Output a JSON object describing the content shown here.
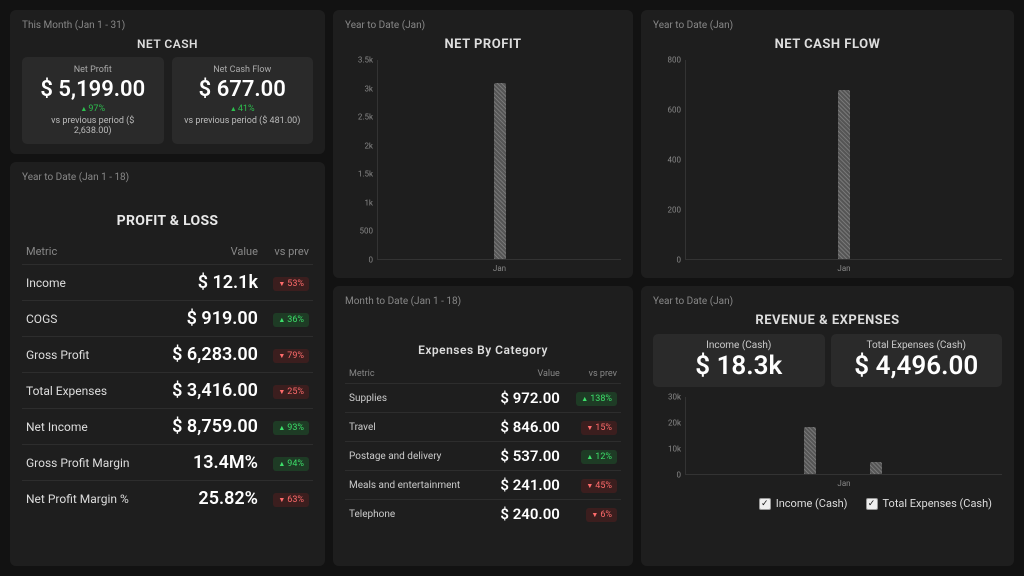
{
  "colors": {
    "bg": "#121212",
    "panel": "#1e1e1e",
    "card": "#2a2a2a",
    "bar_fill": "#5a5a5a",
    "bar_stripe_a": "#777777",
    "bar_stripe_b": "#555555",
    "grid": "#333333",
    "text": "#e8e8e8",
    "muted": "#888888",
    "up": "#3ddf6a",
    "up_bg": "#1e3b25",
    "down": "#ff6b6b",
    "down_bg": "#3b1e1e"
  },
  "net_cash": {
    "period": "This Month (Jan 1 - 31)",
    "title": "NET CASH",
    "kpis": [
      {
        "label": "Net Profit",
        "value": "$ 5,199.00",
        "delta_dir": "up",
        "delta_pct": "97%",
        "sub": "vs previous period ($ 2,638.00)"
      },
      {
        "label": "Net Cash Flow",
        "value": "$ 677.00",
        "delta_dir": "up",
        "delta_pct": "41%",
        "sub": "vs previous period ($ 481.00)"
      }
    ]
  },
  "profit_loss": {
    "period": "Year to Date (Jan 1 - 18)",
    "title": "PROFIT & LOSS",
    "headers": [
      "Metric",
      "Value",
      "vs prev"
    ],
    "rows": [
      {
        "metric": "Income",
        "value": "$ 12.1k",
        "dir": "down",
        "pct": "53%"
      },
      {
        "metric": "COGS",
        "value": "$ 919.00",
        "dir": "up",
        "pct": "36%"
      },
      {
        "metric": "Gross Profit",
        "value": "$ 6,283.00",
        "dir": "down",
        "pct": "79%"
      },
      {
        "metric": "Total Expenses",
        "value": "$ 3,416.00",
        "dir": "down",
        "pct": "25%"
      },
      {
        "metric": "Net Income",
        "value": "$ 8,759.00",
        "dir": "up",
        "pct": "93%"
      },
      {
        "metric": "Gross Profit Margin",
        "value": "13.4M%",
        "dir": "up",
        "pct": "94%"
      },
      {
        "metric": "Net Profit Margin %",
        "value": "25.82%",
        "dir": "down",
        "pct": "63%"
      }
    ]
  },
  "net_profit_chart": {
    "period": "Year to Date (Jan)",
    "title": "NET PROFIT",
    "type": "bar",
    "ylim": [
      0,
      3500
    ],
    "ytick_step": 500,
    "ylabels": [
      "3.5k",
      "3k",
      "2.5k",
      "2k",
      "1.5k",
      "1k",
      "500",
      "0"
    ],
    "categories": [
      "Jan"
    ],
    "values": [
      3100
    ]
  },
  "net_cash_flow_chart": {
    "period": "Year to Date (Jan)",
    "title": "NET CASH FLOW",
    "type": "bar",
    "ylim": [
      0,
      800
    ],
    "ytick_step": 200,
    "ylabels": [
      "800",
      "600",
      "400",
      "200",
      "0"
    ],
    "categories": [
      "Jan"
    ],
    "values": [
      680
    ]
  },
  "expenses": {
    "period": "Month to Date (Jan 1 - 18)",
    "title": "Expenses By Category",
    "headers": [
      "Metric",
      "Value",
      "vs prev"
    ],
    "rows": [
      {
        "metric": "Supplies",
        "value": "$ 972.00",
        "dir": "up",
        "pct": "138%"
      },
      {
        "metric": "Travel",
        "value": "$ 846.00",
        "dir": "down",
        "pct": "15%"
      },
      {
        "metric": "Postage and delivery",
        "value": "$ 537.00",
        "dir": "up",
        "pct": "12%"
      },
      {
        "metric": "Meals and entertainment",
        "value": "$ 241.00",
        "dir": "down",
        "pct": "45%"
      },
      {
        "metric": "Telephone",
        "value": "$ 240.00",
        "dir": "down",
        "pct": "6%"
      }
    ]
  },
  "rev_exp": {
    "period": "Year to Date (Jan)",
    "title": "REVENUE & EXPENSES",
    "kpis": [
      {
        "label": "Income (Cash)",
        "value": "$ 18.3k"
      },
      {
        "label": "Total Expenses (Cash)",
        "value": "$ 4,496.00"
      }
    ],
    "chart": {
      "type": "grouped-bar",
      "ylim": [
        0,
        30000
      ],
      "ytick_step": 10000,
      "ylabels": [
        "30k",
        "20k",
        "10k",
        "0"
      ],
      "categories": [
        "Jan"
      ],
      "series": [
        {
          "name": "Income (Cash)",
          "values": [
            18300
          ]
        },
        {
          "name": "Total Expenses (Cash)",
          "values": [
            4496
          ]
        }
      ]
    },
    "legend": [
      "Income (Cash)",
      "Total Expenses (Cash)"
    ]
  }
}
